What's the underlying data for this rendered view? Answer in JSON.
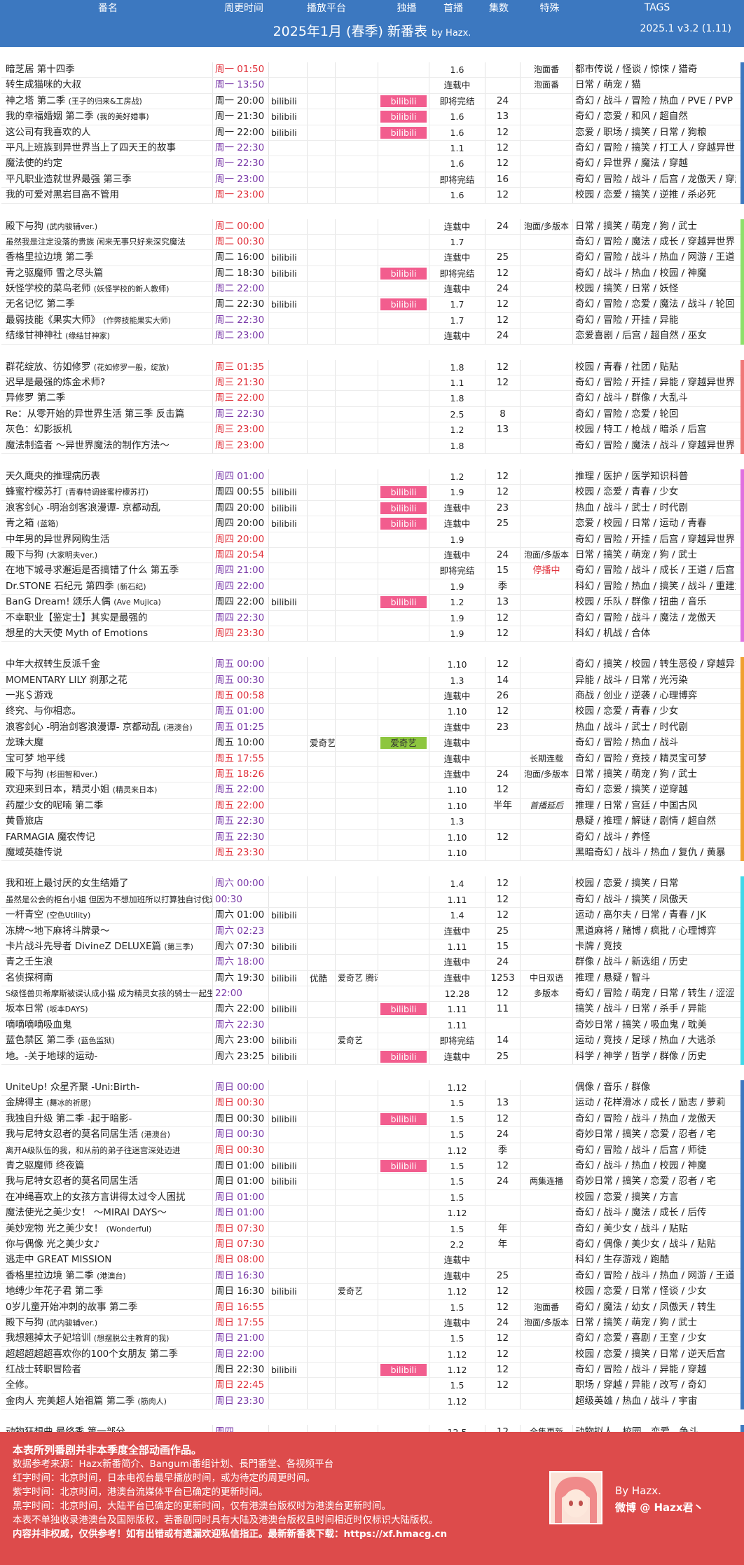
{
  "header": {
    "col_title": "番名",
    "col_time": "周更时间",
    "col_platform": "播放平台",
    "col_exclusive": "独播",
    "col_first": "首播",
    "col_eps": "集数",
    "col_special": "特殊",
    "col_tags": "TAGS",
    "title": "2025年1月 (春季) 新番表",
    "by": "by Hazx.",
    "version": "2025.1 v3.2  (1.11)"
  },
  "colors": {
    "header_bg": "#3c78c0",
    "bilibili": "#f25d8e",
    "iqiyi": "#8dc63f",
    "footer_bg": "#dd4b4b"
  },
  "sections": [
    {
      "border": "#3c78c0",
      "rows": [
        {
          "title": "暗芝居 第十四季",
          "time": "周一 01:50",
          "tc": "red",
          "first": "1.6",
          "special": "泡面番",
          "tags": "都市传说 / 怪谈 / 惊悚 / 猎奇"
        },
        {
          "title": "转生成猫咪的大叔",
          "time": "周一 13:50",
          "tc": "purple",
          "first": "连载中",
          "special": "泡面番",
          "tags": "日常 / 萌宠 / 猫"
        },
        {
          "title": "神之塔 第二季",
          "sub": "(王子的归来&工房战)",
          "time": "周一 20:00",
          "p1": "bilibili",
          "ex": "bilibili",
          "first": "即将完结",
          "eps": "24",
          "tags": "奇幻 / 战斗 / 冒险 / 热血 / PVE / PVP"
        },
        {
          "title": "我的幸福婚姻 第二季",
          "sub": "(我的美好婚事)",
          "time": "周一 21:30",
          "p1": "bilibili",
          "ex": "bilibili",
          "first": "1.6",
          "eps": "13",
          "tags": "奇幻 / 恋爱 / 和风 / 超自然"
        },
        {
          "title": "这公司有我喜欢的人",
          "time": "周一 22:00",
          "p1": "bilibili",
          "ex": "bilibili",
          "first": "1.6",
          "eps": "12",
          "tags": "恋爱 / 职场 / 搞笑 / 日常 / 狗粮"
        },
        {
          "title": "平凡上班族到异世界当上了四天王的故事",
          "time": "周一 22:30",
          "tc": "purple",
          "first": "1.1",
          "eps": "12",
          "tags": "奇幻 / 冒险 / 搞笑 / 打工人 / 穿越异世界"
        },
        {
          "title": "魔法使的约定",
          "time": "周一 22:30",
          "tc": "purple",
          "first": "1.6",
          "eps": "12",
          "tags": "奇幻 / 异世界 / 魔法 / 穿越"
        },
        {
          "title": "平凡职业造就世界最强 第三季",
          "time": "周一 23:00",
          "tc": "purple",
          "first": "即将完结",
          "eps": "16",
          "tags": "奇幻 / 冒险 / 战斗 / 后宫 / 龙傲天 / 穿越"
        },
        {
          "title": "我的可爱对黑岩目高不管用",
          "time": "周一 23:00",
          "tc": "red",
          "first": "1.6",
          "eps": "12",
          "tags": "校园 / 恋爱 / 搞笑 / 逆推 / 杀必死"
        }
      ]
    },
    {
      "border": "#8ee06a",
      "rows": [
        {
          "title": "殿下与狗",
          "sub": "(武内骏辅ver.)",
          "time": "周二 00:00",
          "tc": "red",
          "first": "连载中",
          "eps": "24",
          "special": "泡面/多版本",
          "tags": "日常 / 搞笑 / 萌宠 / 狗 / 武士"
        },
        {
          "title": "虽然我是注定没落的贵族 闲来无事只好来深究魔法",
          "small": true,
          "time": "周二 00:30",
          "tc": "red",
          "first": "1.7",
          "tags": "奇幻 / 冒险 / 魔法 / 成长 / 穿越异世界"
        },
        {
          "title": "香格里拉边境 第二季",
          "time": "周二 16:00",
          "p1": "bilibili",
          "first": "连载中",
          "eps": "25",
          "tags": "奇幻 / 冒险 / 战斗 / 热血 / 网游 / 王道"
        },
        {
          "title": "青之驱魔师 雪之尽头篇",
          "time": "周二 18:30",
          "p1": "bilibili",
          "ex": "bilibili",
          "first": "即将完结",
          "eps": "12",
          "tags": "奇幻 / 战斗 / 热血 / 校园 / 神魔"
        },
        {
          "title": "妖怪学校的菜鸟老师",
          "sub": "(妖怪学校的新人教师)",
          "time": "周二 22:00",
          "tc": "purple",
          "first": "连载中",
          "eps": "24",
          "tags": "校园 / 搞笑 / 日常 / 妖怪"
        },
        {
          "title": "无名记忆 第二季",
          "time": "周二 22:30",
          "p1": "bilibili",
          "ex": "bilibili",
          "first": "1.7",
          "eps": "12",
          "tags": "奇幻 / 冒险 / 恋爱 / 魔法 / 战斗 / 轮回"
        },
        {
          "title": "最弱技能《果实大师》",
          "sub": "(作弊技能果实大师)",
          "time": "周二 22:30",
          "tc": "purple",
          "first": "1.7",
          "eps": "12",
          "tags": "奇幻 / 冒险 / 开挂 / 异能"
        },
        {
          "title": "结缘甘神神社",
          "sub": "(缘结甘神家)",
          "time": "周二 23:00",
          "tc": "purple",
          "first": "连载中",
          "eps": "24",
          "tags": "恋爱喜剧 / 后宫 / 超自然 / 巫女"
        }
      ]
    },
    {
      "border": "#f07878",
      "rows": [
        {
          "title": "群花绽放、彷如修罗",
          "sub": "(花如修罗一般，绽放)",
          "time": "周三 01:35",
          "tc": "red",
          "first": "1.8",
          "eps": "12",
          "tags": "校园 / 青春 / 社团 / 贴贴"
        },
        {
          "title": "迟早是最强的炼金术师?",
          "time": "周三 21:30",
          "tc": "red",
          "first": "1.1",
          "eps": "12",
          "tags": "奇幻 / 冒险 / 开挂 / 异能 / 穿越异世界"
        },
        {
          "title": "异修罗 第二季",
          "time": "周三 22:00",
          "tc": "red",
          "first": "1.8",
          "tags": "奇幻 / 战斗 / 群像 / 大乱斗"
        },
        {
          "title": "Re：从零开始的异世界生活 第三季 反击篇",
          "time": "周三 22:30",
          "tc": "purple",
          "first": "2.5",
          "eps": "8",
          "tags": "奇幻 / 冒险 / 恋爱 / 轮回"
        },
        {
          "title": "灰色：幻影扳机",
          "time": "周三 23:00",
          "tc": "red",
          "first": "1.2",
          "eps": "13",
          "tags": "校园 / 特工 / 枪战 / 暗杀 / 后宫"
        },
        {
          "title": "魔法制造者 ～异世界魔法的制作方法～",
          "time": "周三 23:00",
          "tc": "red",
          "first": "1.8",
          "tags": "奇幻 / 冒险 / 魔法 / 战斗 / 穿越异世界"
        }
      ]
    },
    {
      "border": "#e070e0",
      "rows": [
        {
          "title": "天久鹰央的推理病历表",
          "time": "周四 01:00",
          "tc": "purple",
          "first": "1.2",
          "eps": "12",
          "tags": "推理 / 医护 / 医学知识科普"
        },
        {
          "title": "蜂蜜柠檬苏打",
          "sub": "(青春特调蜂蜜柠檬苏打)",
          "time": "周四 00:55",
          "p1": "bilibili",
          "ex": "bilibili",
          "first": "1.9",
          "eps": "12",
          "tags": "校园 / 恋爱 / 青春 / 少女"
        },
        {
          "title": "浪客剑心 -明治剑客浪漫谭- 京都动乱",
          "time": "周四 20:00",
          "p1": "bilibili",
          "ex": "bilibili",
          "first": "连载中",
          "eps": "23",
          "tags": "热血 / 战斗 / 武士 / 时代剧"
        },
        {
          "title": "青之箱",
          "sub": "(蓝箱)",
          "time": "周四 20:00",
          "p1": "bilibili",
          "ex": "bilibili",
          "first": "连载中",
          "eps": "25",
          "tags": "恋爱 / 校园 / 日常 / 运动 / 青春"
        },
        {
          "title": "中年男的异世界网购生活",
          "time": "周四 20:00",
          "tc": "red",
          "first": "1.9",
          "tags": "奇幻 / 冒险 / 开挂 / 后宫 / 穿越异世界"
        },
        {
          "title": "殿下与狗",
          "sub": "(大家明夫ver.)",
          "time": "周四 20:54",
          "tc": "red",
          "first": "连载中",
          "eps": "24",
          "special": "泡面/多版本",
          "tags": "日常 / 搞笑 / 萌宠 / 狗 / 武士"
        },
        {
          "title": "在地下城寻求邂逅是否搞错了什么 第五季",
          "time": "周四 21:00",
          "tc": "purple",
          "first": "即将完结",
          "eps": "15",
          "special": "停播中",
          "sr": true,
          "tags": "奇幻 / 冒险 / 战斗 / 成长 / 王道 / 后宫"
        },
        {
          "title": "Dr.STONE 石纪元 第四季",
          "sub": "(新石纪)",
          "time": "周四 22:00",
          "tc": "purple",
          "first": "1.9",
          "eps": "季",
          "tags": "科幻 / 冒险 / 热血 / 搞笑 / 战斗 / 重建文明"
        },
        {
          "title": "BanG Dream! 颂乐人偶",
          "sub": "(Ave Mujica)",
          "time": "周四 22:00",
          "p1": "bilibili",
          "ex": "bilibili",
          "first": "1.2",
          "eps": "13",
          "tags": "校园 / 乐队 / 群像 / 扭曲 / 音乐"
        },
        {
          "title": "不幸职业【鉴定士】其实是最强的",
          "time": "周四 22:30",
          "tc": "purple",
          "first": "1.9",
          "eps": "12",
          "tags": "奇幻 / 冒险 / 战斗 / 魔法 / 龙傲天"
        },
        {
          "title": "想星的大天使 Myth of Emotions",
          "time": "周四 23:30",
          "tc": "red",
          "first": "1.9",
          "eps": "12",
          "tags": "科幻 / 机战 / 合体"
        }
      ]
    },
    {
      "border": "#f0a030",
      "rows": [
        {
          "title": "中年大叔转生反派千金",
          "time": "周五 00:00",
          "tc": "purple",
          "first": "1.10",
          "eps": "12",
          "tags": "奇幻 / 搞笑 / 校园 / 转生恶役 / 穿越异世界"
        },
        {
          "title": "MOMENTARY LILY 刹那之花",
          "time": "周五 00:30",
          "tc": "purple",
          "first": "1.3",
          "eps": "14",
          "tags": "异能 / 战斗 / 日常 / 光污染"
        },
        {
          "title": "一兆＄游戏",
          "time": "周五 00:58",
          "tc": "red",
          "first": "连载中",
          "eps": "26",
          "tags": "商战 / 创业 / 逆袭 / 心理博弈"
        },
        {
          "title": "终究、与你相恋。",
          "time": "周五 01:00",
          "tc": "purple",
          "first": "1.10",
          "eps": "12",
          "tags": "校园 / 恋爱 / 青春 / 少女"
        },
        {
          "title": "浪客剑心 -明治剑客浪漫谭- 京都动乱",
          "sub": "(港澳台)",
          "time": "周五 01:25",
          "tc": "purple",
          "first": "连载中",
          "eps": "23",
          "tags": "热血 / 战斗 / 武士 / 时代剧"
        },
        {
          "title": "龙珠大魔",
          "time": "周五 10:00",
          "p2": "爱奇艺",
          "ex": "爱奇艺",
          "exg": true,
          "first": "连载中",
          "tags": "奇幻 / 冒险 / 热血 / 战斗"
        },
        {
          "title": "宝可梦 地平线",
          "time": "周五 17:55",
          "tc": "red",
          "first": "连载中",
          "special": "长期连载",
          "tags": "奇幻 / 冒险 / 竞技 / 精灵宝可梦"
        },
        {
          "title": "殿下与狗",
          "sub": "(杉田智和ver.)",
          "time": "周五 18:26",
          "tc": "red",
          "first": "连载中",
          "eps": "24",
          "special": "泡面/多版本",
          "tags": "日常 / 搞笑 / 萌宠 / 狗 / 武士"
        },
        {
          "title": "欢迎来到日本，精灵小姐",
          "sub": "(精灵来日本)",
          "time": "周五 22:00",
          "tc": "purple",
          "first": "1.10",
          "eps": "12",
          "tags": "奇幻 / 恋爱 / 搞笑 / 逆穿越"
        },
        {
          "title": "药屋少女的呢喃 第二季",
          "time": "周五 22:00",
          "tc": "red",
          "first": "1.10",
          "eps": "半年",
          "special": "首播延后",
          "si": true,
          "tags": "推理 / 日常 / 宫廷 / 中国古风"
        },
        {
          "title": "黄昏旅店",
          "time": "周五 22:30",
          "tc": "purple",
          "first": "1.3",
          "tags": "悬疑 / 推理 / 解谜 / 剧情 / 超自然"
        },
        {
          "title": "FARMAGIA 魔农传记",
          "time": "周五 22:30",
          "tc": "purple",
          "first": "1.10",
          "eps": "12",
          "tags": "奇幻 / 战斗 / 养怪"
        },
        {
          "title": "魔域英雄传说",
          "time": "周五 23:30",
          "tc": "red",
          "first": "1.10",
          "tags": "黑暗奇幻 / 战斗 / 热血 / 复仇 / 黄暴"
        }
      ]
    },
    {
      "border": "#40d8e8",
      "rows": [
        {
          "title": "我和班上最讨厌的女生结婚了",
          "time": "周六 00:00",
          "tc": "purple",
          "first": "1.4",
          "eps": "12",
          "tags": "校园 / 恋爱 / 搞笑 / 日常"
        },
        {
          "title": "虽然是公会的柜台小姐 但因为不想加班所以打算独自讨伐迷宫头目",
          "small": true,
          "time": "00:30",
          "tc": "purple",
          "first": "1.11",
          "eps": "12",
          "tags": "奇幻 / 战斗 / 搞笑 / 凤傲天"
        },
        {
          "title": "一杆青空",
          "sub": "(空色Utility)",
          "time": "周六 01:00",
          "p1": "bilibili",
          "first": "1.4",
          "eps": "12",
          "tags": "运动 / 高尔夫 / 日常 / 青春 / JK"
        },
        {
          "title": "冻牌～地下麻将斗牌录～",
          "time": "周六 02:23",
          "tc": "purple",
          "first": "连载中",
          "eps": "25",
          "tags": "黑道麻将 / 赌博 / 疯批 / 心理博弈"
        },
        {
          "title": "卡片战斗先导者 DivineZ DELUXE篇",
          "sub": "(第三季)",
          "time": "周六 07:30",
          "p1": "bilibili",
          "first": "1.11",
          "eps": "15",
          "tags": "卡牌 / 竞技"
        },
        {
          "title": "青之壬生浪",
          "time": "周六 18:00",
          "tc": "purple",
          "first": "连载中",
          "eps": "24",
          "tags": "群像 / 战斗 / 新选组 / 历史"
        },
        {
          "title": "名侦探柯南",
          "time": "周六 19:30",
          "p1": "bilibili",
          "p2": "优酷",
          "p3": "爱奇艺 腾讯",
          "first": "连载中",
          "eps": "1253",
          "special": "中日双语",
          "tags": "推理 / 悬疑 / 智斗"
        },
        {
          "title": "S级怪兽贝希摩斯被误认成小猫 成为精灵女孩的骑士一起生活",
          "small": true,
          "time": "22:00",
          "tc": "purple",
          "first": "12.28",
          "eps": "12",
          "special": "多版本",
          "tags": "奇幻 / 冒险 / 萌宠 / 日常 / 转生 / 涩涩"
        },
        {
          "title": "坂本日常",
          "sub": "(坂本DAYS)",
          "time": "周六 22:00",
          "p1": "bilibili",
          "ex": "bilibili",
          "first": "1.11",
          "eps": "11",
          "tags": "搞笑 / 战斗 / 日常 / 杀手 / 异能"
        },
        {
          "title": "嘀嘀嘀嘀吸血鬼",
          "time": "周六 22:30",
          "tc": "purple",
          "first": "1.11",
          "tags": "奇妙日常 / 搞笑 / 吸血鬼 / 耽美"
        },
        {
          "title": "蓝色禁区 第二季",
          "sub": "(蓝色监狱)",
          "time": "周六 23:00",
          "p1": "bilibili",
          "p3": "爱奇艺",
          "first": "即将完结",
          "eps": "14",
          "tags": "运动 / 竞技 / 足球 / 热血 / 大逃杀"
        },
        {
          "title": "地。-关于地球的运动-",
          "time": "周六 23:25",
          "p1": "bilibili",
          "ex": "bilibili",
          "first": "连载中",
          "eps": "25",
          "tags": "科学 / 神学 / 哲学 / 群像 / 历史"
        }
      ]
    },
    {
      "border": "#3c78c0",
      "rows": [
        {
          "title": "UniteUp! 众星齐聚 -Uni:Birth-",
          "time": "周日 00:00",
          "tc": "purple",
          "first": "1.12",
          "tags": "偶像 / 音乐 / 群像"
        },
        {
          "title": "金牌得主",
          "sub": "(舞冰的祈愿)",
          "time": "周日 00:30",
          "tc": "red",
          "first": "1.5",
          "eps": "13",
          "tags": "运动 / 花样滑冰 / 成长 / 励志 / 萝莉"
        },
        {
          "title": "我独自升级 第二季 -起于暗影-",
          "time": "周日 00:30",
          "p1": "bilibili",
          "ex": "bilibili",
          "first": "1.5",
          "eps": "12",
          "tags": "奇幻 / 冒险 / 战斗 / 热血 / 龙傲天"
        },
        {
          "title": "我与尼特女忍者的莫名同居生活",
          "sub": "(港澳台)",
          "time": "周日 00:30",
          "tc": "purple",
          "first": "1.5",
          "eps": "24",
          "tags": "奇妙日常 / 搞笑 / 恋爱 / 忍者 / 宅"
        },
        {
          "title": "离开A级队伍的我，和从前的弟子往迷宫深处迈进",
          "small": true,
          "time": "周日 00:30",
          "tc": "red",
          "first": "1.12",
          "eps": "季",
          "tags": "奇幻 / 冒险 / 战斗 / 后宫 / 师徒"
        },
        {
          "title": "青之驱魔师 终夜篇",
          "time": "周日 01:00",
          "p1": "bilibili",
          "ex": "bilibili",
          "first": "1.5",
          "eps": "12",
          "tags": "奇幻 / 战斗 / 热血 / 校园 / 神魔"
        },
        {
          "title": "我与尼特女忍者的莫名同居生活",
          "time": "周日 01:00",
          "p1": "bilibili",
          "first": "1.5",
          "eps": "24",
          "special": "两集连播",
          "tags": "奇妙日常 / 搞笑 / 恋爱 / 忍者 / 宅"
        },
        {
          "title": "在冲绳喜欢上的女孩方言讲得太过令人困扰",
          "time": "周日 01:00",
          "tc": "purple",
          "first": "1.5",
          "tags": "校园 / 恋爱 / 搞笑 / 方言"
        },
        {
          "title": "魔法使光之美少女！ ～MIRAI DAYS～",
          "time": "周日 01:00",
          "tc": "purple",
          "first": "1.12",
          "tags": "奇幻 / 战斗 / 魔法 / 成长 / 后传"
        },
        {
          "title": "美妙宠物 光之美少女！",
          "sub": "(Wonderful)",
          "time": "周日 07:30",
          "tc": "red",
          "first": "1.5",
          "eps": "年",
          "tags": "奇幻 / 美少女 / 战斗 / 贴贴"
        },
        {
          "title": "你与偶像 光之美少女♪",
          "time": "周日 07:30",
          "tc": "red",
          "first": "2.2",
          "eps": "年",
          "tags": "奇幻 / 偶像 / 美少女 / 战斗 / 贴贴"
        },
        {
          "title": "逃走中 GREAT MISSION",
          "time": "周日 08:00",
          "tc": "red",
          "first": "连载中",
          "tags": "科幻 / 生存游戏 / 跑酷"
        },
        {
          "title": "香格里拉边境 第二季",
          "sub": "(港澳台)",
          "time": "周日 16:30",
          "tc": "purple",
          "first": "连载中",
          "eps": "25",
          "tags": "奇幻 / 冒险 / 战斗 / 热血 / 网游 / 王道"
        },
        {
          "title": "地缚少年花子君 第二季",
          "time": "周日 16:30",
          "p1": "bilibili",
          "p3": "爱奇艺",
          "first": "1.12",
          "eps": "12",
          "tags": "校园 / 恋爱 / 日常 / 怪谈 / 少女"
        },
        {
          "title": "0岁儿童开始冲刺的故事 第二季",
          "time": "周日 16:55",
          "tc": "red",
          "first": "1.5",
          "eps": "12",
          "special": "泡面番",
          "tags": "奇幻 / 魔法 / 幼女 / 凤傲天 / 转生"
        },
        {
          "title": "殿下与狗",
          "sub": "(武内骏辅ver.)",
          "time": "周日 17:55",
          "tc": "red",
          "first": "连载中",
          "eps": "24",
          "special": "泡面/多版本",
          "tags": "日常 / 搞笑 / 萌宠 / 狗 / 武士"
        },
        {
          "title": "我想翘掉太子妃培训",
          "sub": "(想摆脱公主教育的我)",
          "time": "周日 21:00",
          "tc": "purple",
          "first": "1.5",
          "eps": "12",
          "tags": "奇幻 / 恋爱 / 喜剧 / 王室 / 少女"
        },
        {
          "title": "超超超超超喜欢你的100个女朋友 第二季",
          "time": "周日 22:00",
          "tc": "purple",
          "first": "1.12",
          "eps": "12",
          "tags": "校园 / 恋爱 / 搞笑 / 日常 / 逆天后宫"
        },
        {
          "title": "红战士转职冒险者",
          "time": "周日 22:30",
          "p1": "bilibili",
          "ex": "bilibili",
          "first": "1.12",
          "eps": "12",
          "tags": "奇幻 / 冒险 / 战斗 / 异能 / 穿越"
        },
        {
          "title": "全修。",
          "time": "周日 22:45",
          "tc": "red",
          "first": "1.5",
          "eps": "12",
          "tags": "职场 / 穿越 / 异能 / 改写 / 奇幻"
        },
        {
          "title": "金肉人 完美超人始祖篇 第二季",
          "sub": "(筋肉人)",
          "time": "周日 23:30",
          "tc": "purple",
          "first": "1.12",
          "tags": "超级英雄 / 热血 / 战斗 / 宇宙"
        }
      ]
    },
    {
      "border": "#3c78c0",
      "rows": [
        {
          "title": "动物狂想曲 最终季 第一部分",
          "time": "周四",
          "tc": "purple",
          "first": "12.5",
          "eps": "12",
          "special": "全集更新",
          "tags": "动物拟人、校园、恋爱、争斗"
        }
      ]
    }
  ],
  "footer": {
    "lines": [
      "本表所列番剧并非本季度全部动画作品。",
      "数据参考来源：Hazx新番简介、Bangumi番组计划、長門番堂、各视频平台",
      "红字时间：北京时间，日本电视台最早播放时间，或为待定的周更时间。",
      "紫字时间：北京时间，港澳台流媒体平台已确定的更新时间。",
      "黑字时间：北京时间，大陆平台已确定的更新时间，仅有港澳台版权时为港澳台更新时间。",
      "本表不单独收录港澳台及国际版权，若番剧同时具有大陆及港澳台版权且时间相近时仅标识大陆版权。",
      "内容并非权威，仅供参考！如有出错或有遗漏欢迎私信指正。最新新番表下载：https://xf.hmacg.cn"
    ],
    "sig_by": "By Hazx.",
    "sig_weibo": "微博 @ Hazx君丶"
  }
}
